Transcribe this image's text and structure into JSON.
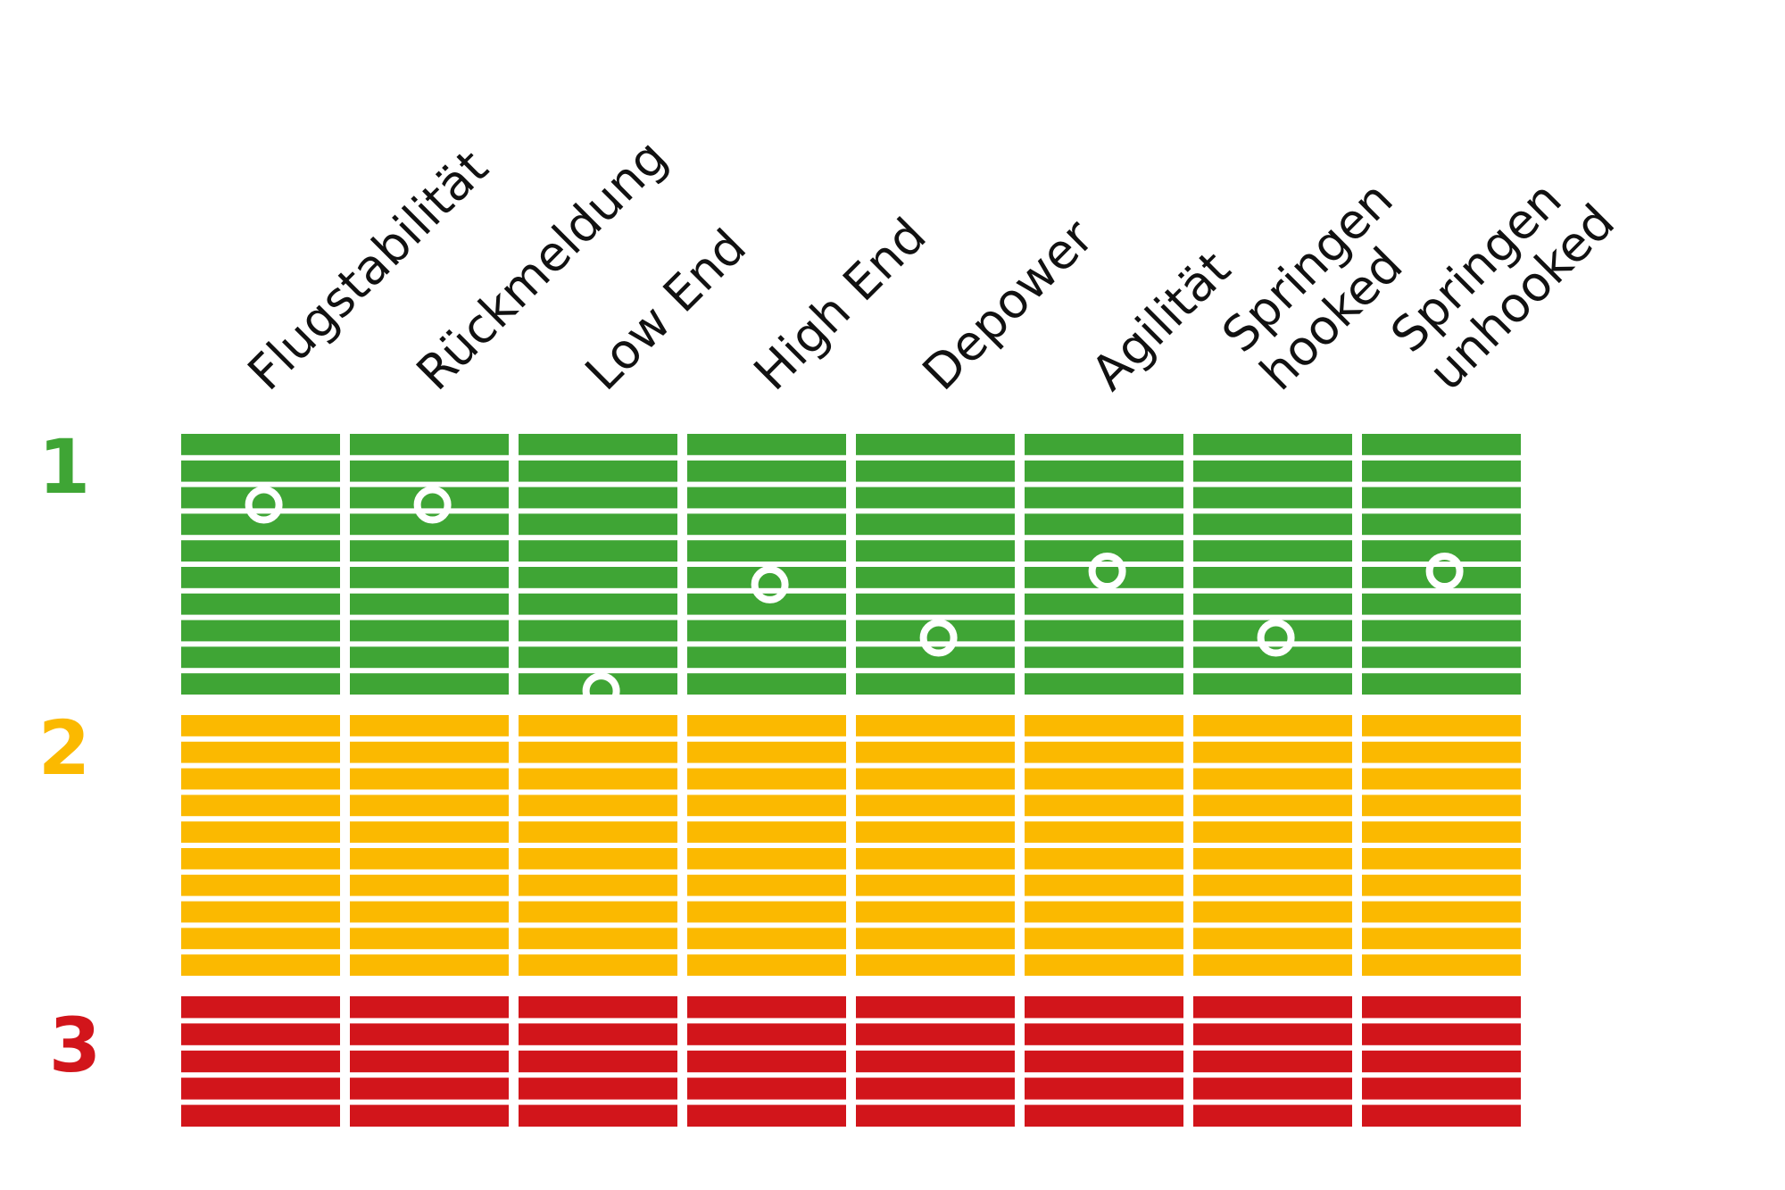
{
  "chart_data": {
    "type": "scatter",
    "title": "",
    "xlabel": "",
    "ylabel": "",
    "categories": [
      [
        "Flugstabilität"
      ],
      [
        "Rückmeldung"
      ],
      [
        "Low End"
      ],
      [
        "High End"
      ],
      [
        "Depower"
      ],
      [
        "Agilität"
      ],
      [
        "Springen",
        "hooked"
      ],
      [
        "Springen",
        "unhooked"
      ]
    ],
    "zones": [
      {
        "label": "1",
        "color": "#3FA535",
        "bars": 10
      },
      {
        "label": "2",
        "color": "#FBB900",
        "bars": 10
      },
      {
        "label": "3",
        "color": "#D2151B",
        "bars": 5
      }
    ],
    "marker_color": "#ffffff",
    "values": [
      1.2,
      1.2,
      1.9,
      1.5,
      1.7,
      1.45,
      1.7,
      1.45
    ],
    "ylim": [
      1,
      3.5
    ],
    "grid": true
  }
}
